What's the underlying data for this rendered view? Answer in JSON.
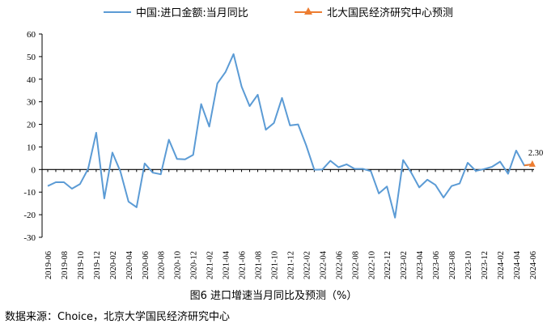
{
  "legend": {
    "series1": "中国:进口金额:当月同比",
    "series2": "北大国民经济研究中心预测"
  },
  "caption": "图6   进口增速当月同比及预测（%）",
  "source": "数据来源：Choice，北京大学国民经济研究中心",
  "colors": {
    "actual": "#5B9BD5",
    "forecast": "#ED7D31"
  },
  "chart_data": {
    "type": "line",
    "ylim": [
      -30,
      60
    ],
    "yticks": [
      -30,
      -20,
      -10,
      0,
      10,
      20,
      30,
      40,
      50,
      60
    ],
    "x": [
      "2019-06",
      "2019-07",
      "2019-08",
      "2019-09",
      "2019-10",
      "2019-11",
      "2019-12",
      "2020-01",
      "2020-02",
      "2020-03",
      "2020-04",
      "2020-05",
      "2020-06",
      "2020-07",
      "2020-08",
      "2020-09",
      "2020-10",
      "2020-11",
      "2020-12",
      "2021-01",
      "2021-02",
      "2021-03",
      "2021-04",
      "2021-05",
      "2021-06",
      "2021-07",
      "2021-08",
      "2021-09",
      "2021-10",
      "2021-11",
      "2021-12",
      "2022-01",
      "2022-02",
      "2022-03",
      "2022-04",
      "2022-05",
      "2022-06",
      "2022-07",
      "2022-08",
      "2022-09",
      "2022-10",
      "2022-11",
      "2022-12",
      "2023-01",
      "2023-02",
      "2023-03",
      "2023-04",
      "2023-05",
      "2023-06",
      "2023-07",
      "2023-08",
      "2023-09",
      "2023-10",
      "2023-11",
      "2023-12",
      "2024-01",
      "2024-02",
      "2024-03",
      "2024-04",
      "2024-05",
      "2024-06"
    ],
    "xtick_labels": [
      "2019-06",
      "2019-08",
      "2019-10",
      "2019-12",
      "2020-02",
      "2020-04",
      "2020-06",
      "2020-08",
      "2020-10",
      "2020-12",
      "2021-02",
      "2021-04",
      "2021-06",
      "2021-08",
      "2021-10",
      "2021-12",
      "2022-02",
      "2022-04",
      "2022-06",
      "2022-08",
      "2022-10",
      "2022-12",
      "2023-02",
      "2023-04",
      "2023-06",
      "2023-08",
      "2023-10",
      "2023-12",
      "2024-02",
      "2024-04",
      "2024-06"
    ],
    "series": [
      {
        "name": "中国:进口金额:当月同比",
        "values": [
          -7.3,
          -5.6,
          -5.6,
          -8.5,
          -6.4,
          0.3,
          16.3,
          -12.8,
          7.5,
          -0.9,
          -14.2,
          -16.7,
          2.7,
          -1.4,
          -2.1,
          13.2,
          4.7,
          4.5,
          6.5,
          29.0,
          19.0,
          38.1,
          43.1,
          51.1,
          36.7,
          28.1,
          33.1,
          17.6,
          20.6,
          31.7,
          19.5,
          20.0,
          10.7,
          -0.1,
          0.0,
          3.9,
          1.0,
          2.3,
          0.3,
          0.3,
          -0.7,
          -10.6,
          -7.5,
          -21.3,
          4.2,
          -1.4,
          -7.9,
          -4.5,
          -6.8,
          -12.4,
          -7.3,
          -6.2,
          3.0,
          -0.6,
          0.2,
          1.2,
          3.5,
          -1.9,
          8.4,
          1.8,
          2.3
        ]
      },
      {
        "name": "北大国民经济研究中心预测",
        "x": [
          "2024-05",
          "2024-06"
        ],
        "values": [
          1.8,
          2.3
        ],
        "label": "2.30"
      }
    ]
  }
}
